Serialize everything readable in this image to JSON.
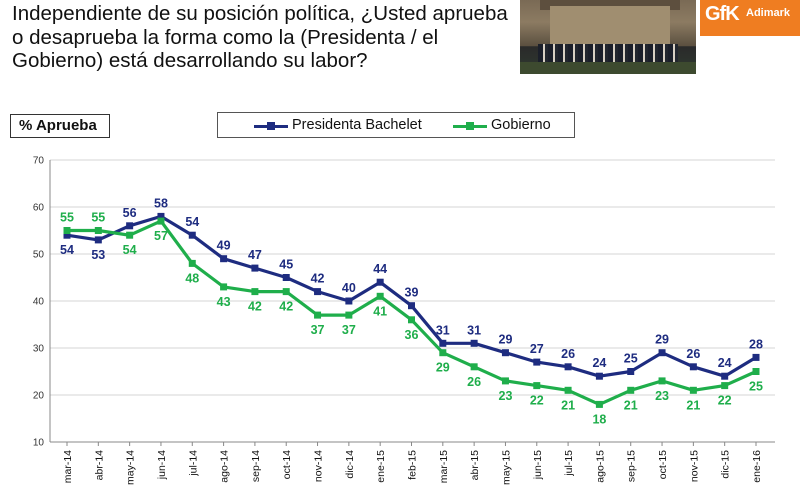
{
  "question": "Independiente de su posición política, ¿Usted aprueba o desaprueba la forma como la (Presidenta / el Gobierno) está desarrollando su labor?",
  "logo": {
    "gfk": "GfK",
    "adimark": "Adimark"
  },
  "chart_data": {
    "type": "line",
    "ylabel": "% Aprueba",
    "ylim": [
      10,
      70
    ],
    "yticks": [
      10,
      20,
      30,
      40,
      50,
      60,
      70
    ],
    "grid": true,
    "legend_placement": "top",
    "categories": [
      "mar-14",
      "abr-14",
      "may-14",
      "jun-14",
      "jul-14",
      "ago-14",
      "sep-14",
      "oct-14",
      "nov-14",
      "dic-14",
      "ene-15",
      "feb-15",
      "mar-15",
      "abr-15",
      "may-15",
      "jun-15",
      "jul-15",
      "ago-15",
      "sep-15",
      "oct-15",
      "nov-15",
      "dic-15",
      "ene-16"
    ],
    "series": [
      {
        "name": "Presidenta Bachelet",
        "color": "#1e2c80",
        "values": [
          54,
          53,
          56,
          58,
          54,
          49,
          47,
          45,
          42,
          40,
          44,
          39,
          31,
          31,
          29,
          27,
          26,
          24,
          25,
          29,
          26,
          24,
          28
        ]
      },
      {
        "name": "Gobierno",
        "color": "#1fae4b",
        "values": [
          55,
          55,
          54,
          57,
          48,
          43,
          42,
          42,
          37,
          37,
          41,
          36,
          29,
          26,
          23,
          22,
          21,
          18,
          21,
          23,
          21,
          22,
          25
        ]
      }
    ]
  }
}
